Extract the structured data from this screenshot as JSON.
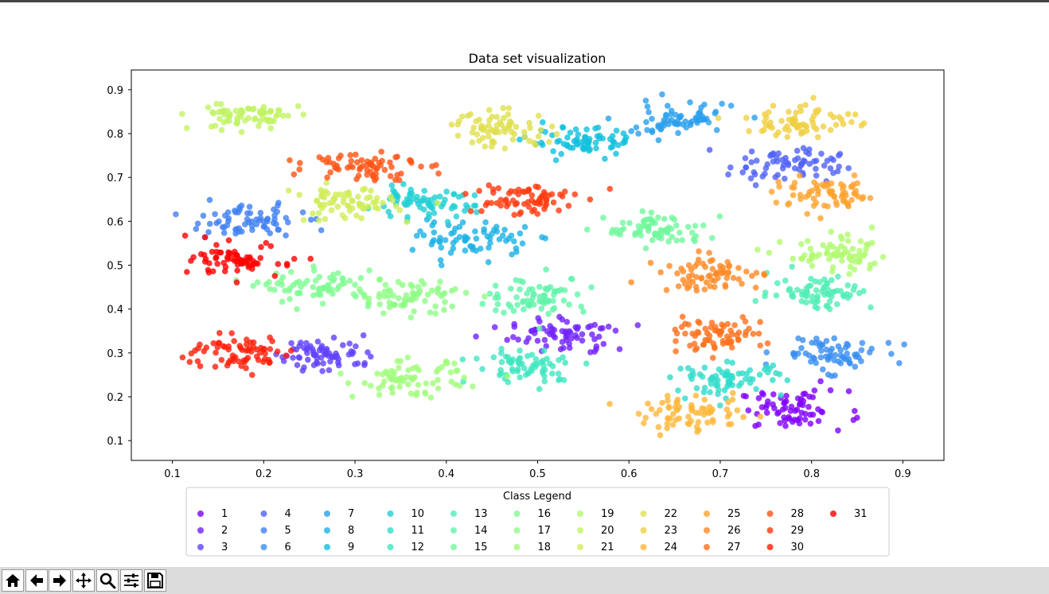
{
  "chart_data": {
    "type": "scatter",
    "title": "Data set visualization",
    "xlabel": "",
    "ylabel": "",
    "xlim": [
      0.055,
      0.945
    ],
    "ylim": [
      0.055,
      0.945
    ],
    "x_ticks": [
      "0.1",
      "0.2",
      "0.3",
      "0.4",
      "0.5",
      "0.6",
      "0.7",
      "0.8",
      "0.9"
    ],
    "y_ticks": [
      "0.1",
      "0.2",
      "0.3",
      "0.4",
      "0.5",
      "0.6",
      "0.7",
      "0.8",
      "0.9"
    ],
    "grid": false,
    "legend": {
      "title": "Class Legend",
      "placement": "below plot",
      "columns": 11
    },
    "series": [
      {
        "name": "1",
        "color": "#8000ff",
        "center": [
          0.78,
          0.17
        ],
        "spread": [
          0.03,
          0.022
        ],
        "count": 70
      },
      {
        "name": "2",
        "color": "#7021fe",
        "center": [
          0.53,
          0.34
        ],
        "spread": [
          0.03,
          0.02
        ],
        "count": 70
      },
      {
        "name": "3",
        "color": "#6041fc",
        "center": [
          0.27,
          0.3
        ],
        "spread": [
          0.028,
          0.02
        ],
        "count": 70
      },
      {
        "name": "4",
        "color": "#5061f9",
        "center": [
          0.77,
          0.73
        ],
        "spread": [
          0.03,
          0.02
        ],
        "count": 70
      },
      {
        "name": "5",
        "color": "#4080f3",
        "center": [
          0.18,
          0.6
        ],
        "spread": [
          0.032,
          0.018
        ],
        "count": 70
      },
      {
        "name": "6",
        "color": "#3a8ef1",
        "center": [
          0.82,
          0.3
        ],
        "spread": [
          0.028,
          0.02
        ],
        "count": 70
      },
      {
        "name": "7",
        "color": "#2a9fec",
        "center": [
          0.65,
          0.83
        ],
        "spread": [
          0.034,
          0.02
        ],
        "count": 70
      },
      {
        "name": "8",
        "color": "#1cb1e5",
        "center": [
          0.43,
          0.56
        ],
        "spread": [
          0.03,
          0.02
        ],
        "count": 70
      },
      {
        "name": "9",
        "color": "#10c1dd",
        "center": [
          0.55,
          0.78
        ],
        "spread": [
          0.03,
          0.016
        ],
        "count": 70
      },
      {
        "name": "10",
        "color": "#20d0d4",
        "center": [
          0.37,
          0.64
        ],
        "spread": [
          0.03,
          0.016
        ],
        "count": 70
      },
      {
        "name": "11",
        "color": "#30dcca",
        "center": [
          0.71,
          0.24
        ],
        "spread": [
          0.03,
          0.018
        ],
        "count": 70
      },
      {
        "name": "12",
        "color": "#40e6c0",
        "center": [
          0.49,
          0.27
        ],
        "spread": [
          0.03,
          0.02
        ],
        "count": 70
      },
      {
        "name": "13",
        "color": "#50eeb5",
        "center": [
          0.81,
          0.44
        ],
        "spread": [
          0.028,
          0.02
        ],
        "count": 70
      },
      {
        "name": "14",
        "color": "#60f4aa",
        "center": [
          0.5,
          0.43
        ],
        "spread": [
          0.028,
          0.022
        ],
        "count": 70
      },
      {
        "name": "15",
        "color": "#70f89e",
        "center": [
          0.63,
          0.58
        ],
        "spread": [
          0.028,
          0.018
        ],
        "count": 70
      },
      {
        "name": "16",
        "color": "#80fb92",
        "center": [
          0.26,
          0.45
        ],
        "spread": [
          0.03,
          0.018
        ],
        "count": 70
      },
      {
        "name": "17",
        "color": "#90fd86",
        "center": [
          0.36,
          0.43
        ],
        "spread": [
          0.03,
          0.02
        ],
        "count": 70
      },
      {
        "name": "18",
        "color": "#a0fc7a",
        "center": [
          0.36,
          0.24
        ],
        "spread": [
          0.03,
          0.02
        ],
        "count": 70
      },
      {
        "name": "19",
        "color": "#b0fa6e",
        "center": [
          0.83,
          0.52
        ],
        "spread": [
          0.03,
          0.02
        ],
        "count": 70
      },
      {
        "name": "20",
        "color": "#c0f463",
        "center": [
          0.18,
          0.84
        ],
        "spread": [
          0.03,
          0.016
        ],
        "count": 70
      },
      {
        "name": "21",
        "color": "#d0ee58",
        "center": [
          0.29,
          0.64
        ],
        "spread": [
          0.028,
          0.02
        ],
        "count": 70
      },
      {
        "name": "22",
        "color": "#e0e04d",
        "center": [
          0.46,
          0.81
        ],
        "spread": [
          0.028,
          0.02
        ],
        "count": 70
      },
      {
        "name": "23",
        "color": "#f0d042",
        "center": [
          0.79,
          0.83
        ],
        "spread": [
          0.03,
          0.02
        ],
        "count": 70
      },
      {
        "name": "24",
        "color": "#ffb638",
        "center": [
          0.67,
          0.16
        ],
        "spread": [
          0.03,
          0.02
        ],
        "count": 70
      },
      {
        "name": "25",
        "color": "#ffa22e",
        "center": [
          0.82,
          0.66
        ],
        "spread": [
          0.03,
          0.018
        ],
        "count": 70
      },
      {
        "name": "26",
        "color": "#ff8a25",
        "center": [
          0.69,
          0.48
        ],
        "spread": [
          0.028,
          0.02
        ],
        "count": 70
      },
      {
        "name": "27",
        "color": "#ff701c",
        "center": [
          0.69,
          0.34
        ],
        "spread": [
          0.028,
          0.018
        ],
        "count": 70
      },
      {
        "name": "28",
        "color": "#ff5414",
        "center": [
          0.31,
          0.73
        ],
        "spread": [
          0.03,
          0.018
        ],
        "count": 70
      },
      {
        "name": "29",
        "color": "#ff3a0e",
        "center": [
          0.48,
          0.65
        ],
        "spread": [
          0.03,
          0.02
        ],
        "count": 70
      },
      {
        "name": "30",
        "color": "#ff1e07",
        "center": [
          0.17,
          0.3
        ],
        "spread": [
          0.028,
          0.02
        ],
        "count": 70
      },
      {
        "name": "31",
        "color": "#ff0000",
        "center": [
          0.18,
          0.51
        ],
        "spread": [
          0.028,
          0.018
        ],
        "count": 70
      }
    ]
  },
  "toolbar": {
    "buttons": [
      {
        "name": "home-button",
        "icon": "home-icon"
      },
      {
        "name": "back-button",
        "icon": "arrow-left-icon"
      },
      {
        "name": "forward-button",
        "icon": "arrow-right-icon"
      },
      {
        "name": "pan-button",
        "icon": "move-icon"
      },
      {
        "name": "zoom-button",
        "icon": "magnifier-icon"
      },
      {
        "name": "configure-subplots-button",
        "icon": "sliders-icon"
      },
      {
        "name": "save-button",
        "icon": "floppy-disk-icon"
      }
    ]
  }
}
